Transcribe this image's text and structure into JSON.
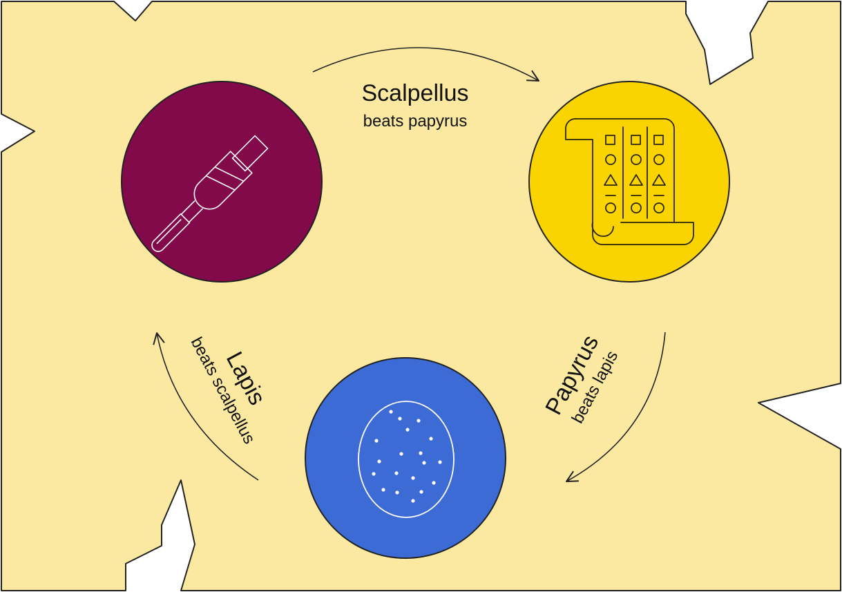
{
  "colors": {
    "paper": "#fbe9a1",
    "outline": "#222222",
    "scalpellus_fill": "#820a4a",
    "papyrus_fill": "#fad400",
    "lapis_fill": "#3c6bd6",
    "icon_stroke_light": "#ffffff",
    "icon_stroke_dark": "#2b2410"
  },
  "nodes": {
    "scalpellus": {
      "icon": "scalpel-icon"
    },
    "papyrus": {
      "icon": "scroll-icon"
    },
    "lapis": {
      "icon": "stone-icon"
    }
  },
  "edges": {
    "scalpellus_papyrus": {
      "title": "Scalpellus",
      "subtitle": "beats papyrus"
    },
    "papyrus_lapis": {
      "title": "Papyrus",
      "subtitle": "beats lapis"
    },
    "lapis_scalpellus": {
      "title": "Lapis",
      "subtitle": "beats scalpellus"
    }
  }
}
